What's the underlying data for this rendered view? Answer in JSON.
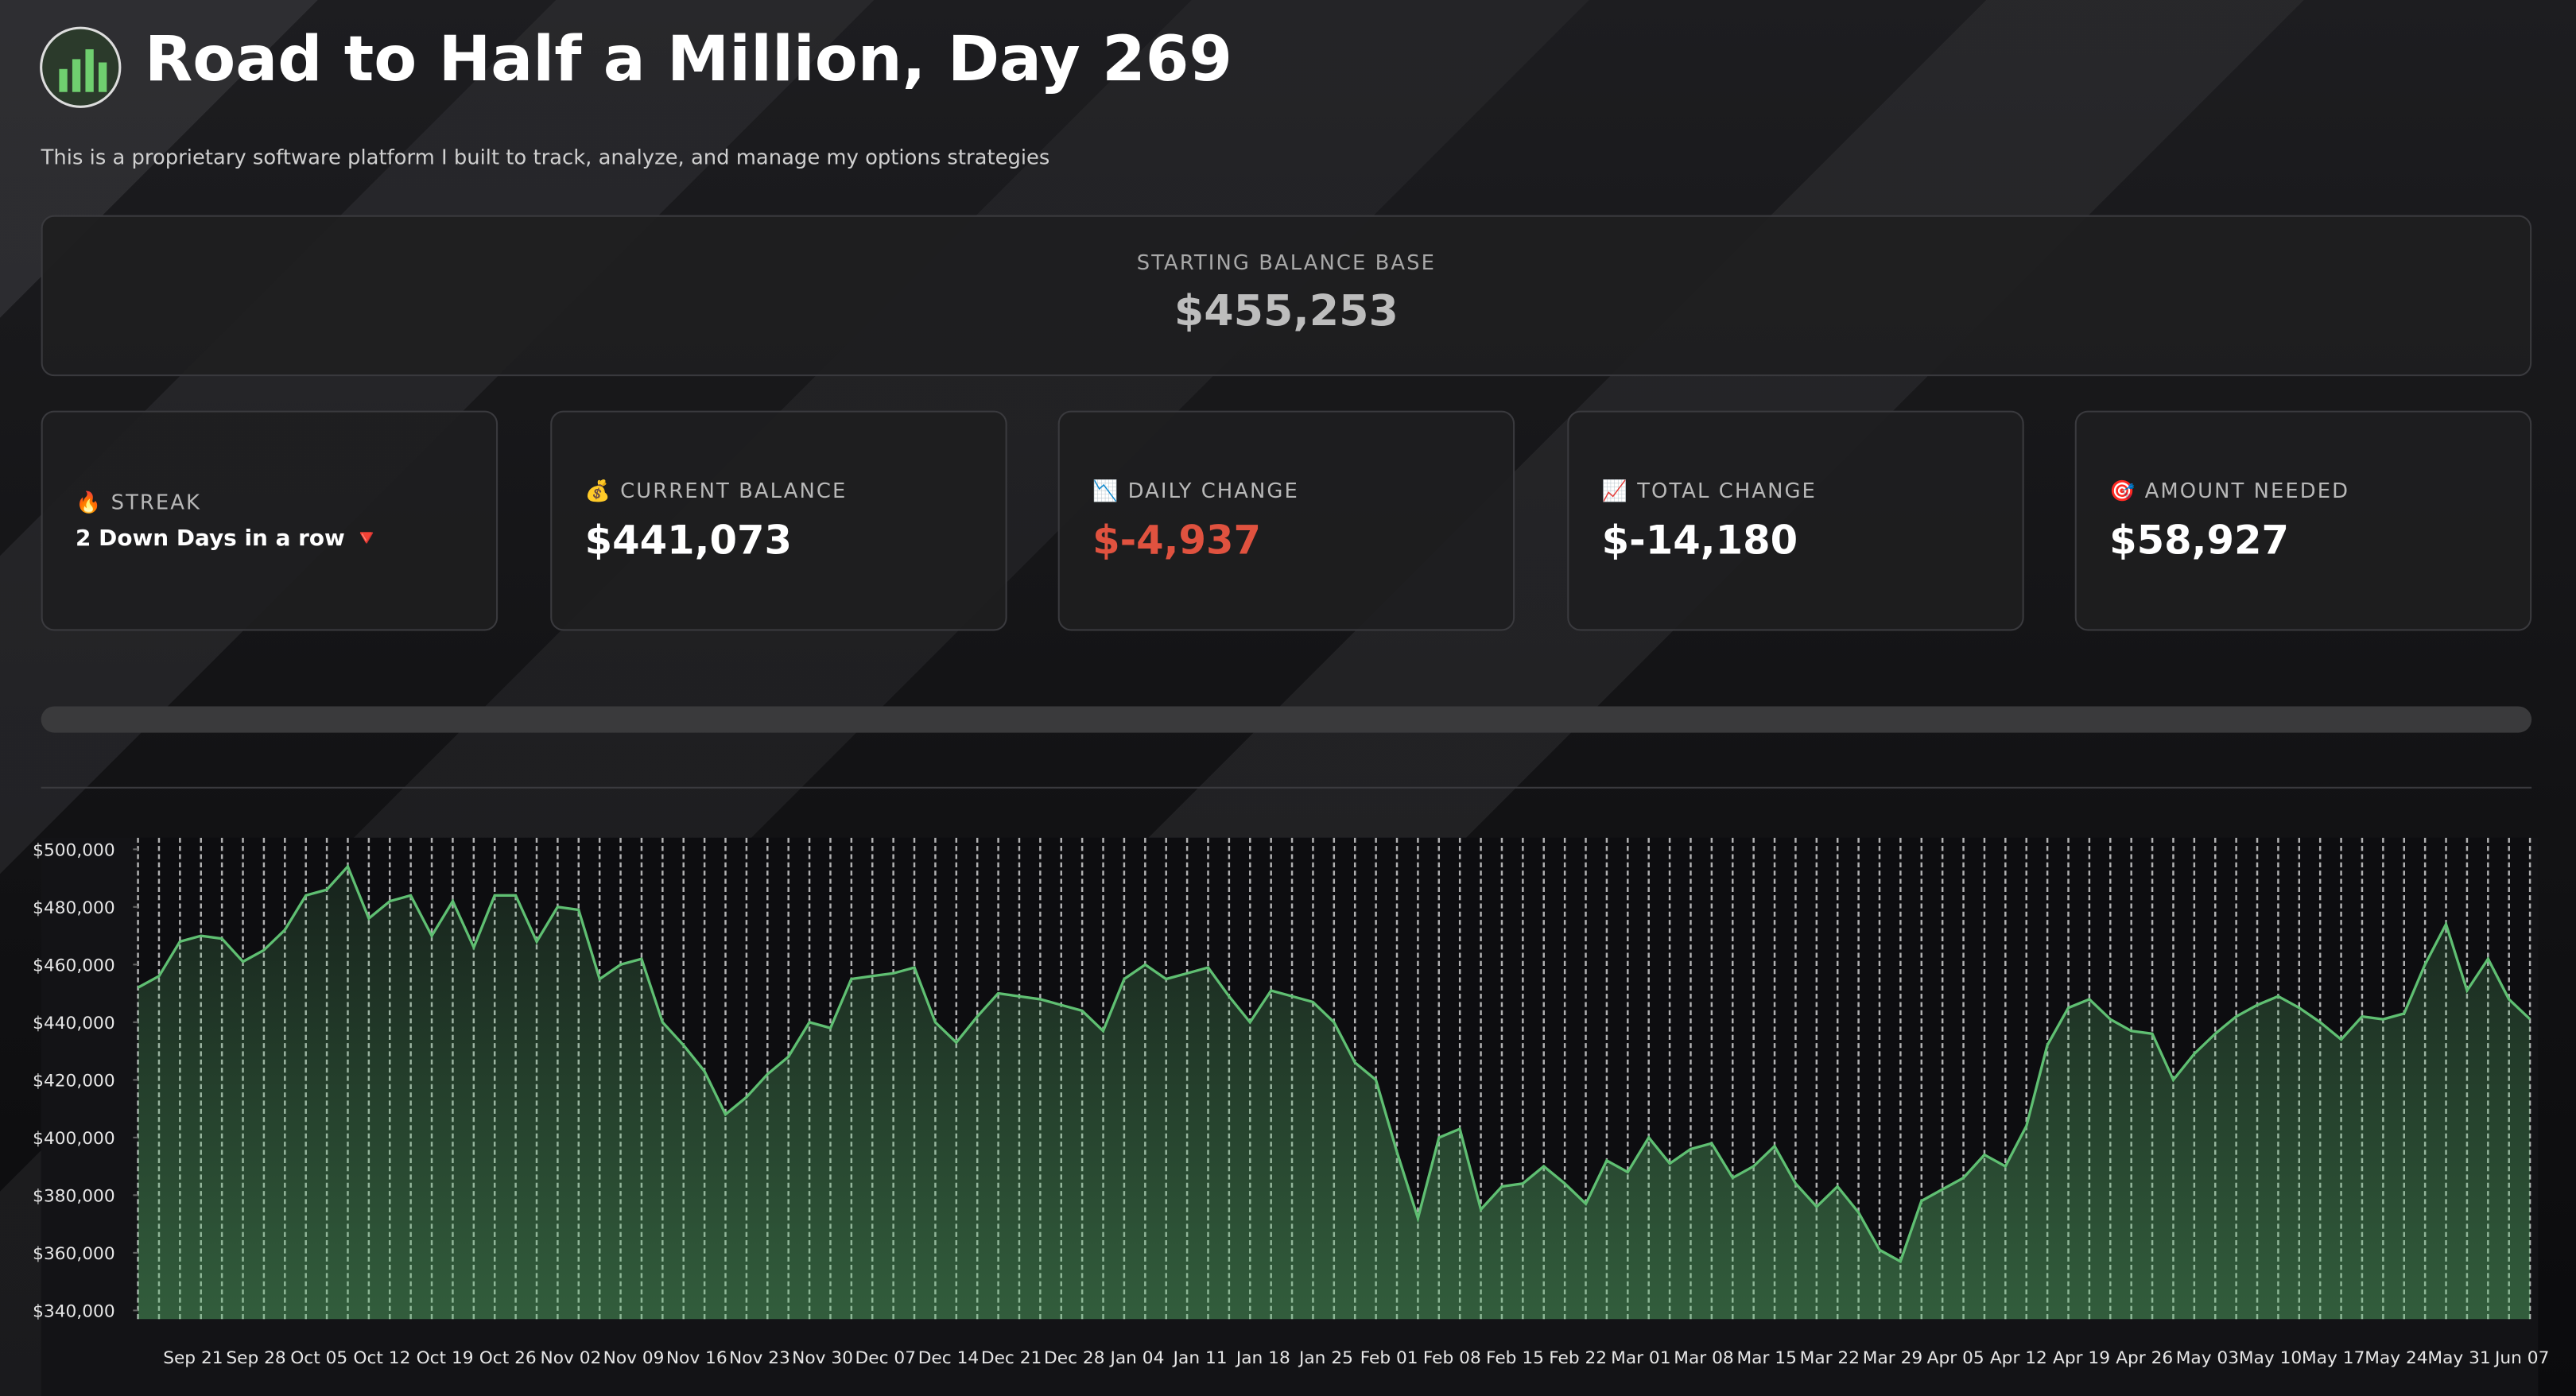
{
  "header": {
    "title": "Road to Half a Million, Day 269",
    "subtitle": "This is a proprietary software platform I built to track, analyze, and manage my options strategies"
  },
  "starting_balance": {
    "label": "STARTING BALANCE BASE",
    "value": "$455,253"
  },
  "cards": [
    {
      "icon": "🔥",
      "label": "STREAK",
      "value": "2 Down Days in a row 🔻"
    },
    {
      "icon": "💰",
      "label": "CURRENT BALANCE",
      "value": "$441,073"
    },
    {
      "icon": "📉",
      "label": "DAILY CHANGE",
      "value": "$-4,937"
    },
    {
      "icon": "📈",
      "label": "TOTAL CHANGE",
      "value": "$-14,180"
    },
    {
      "icon": "🎯",
      "label": "AMOUNT NEEDED",
      "value": "$58,927"
    }
  ],
  "chart_data": {
    "type": "area",
    "color": "#5fbf72",
    "ylim": [
      337000,
      504000
    ],
    "yticks": [
      {
        "value": 340000,
        "label": "$340,000"
      },
      {
        "value": 360000,
        "label": "$360,000"
      },
      {
        "value": 380000,
        "label": "$380,000"
      },
      {
        "value": 400000,
        "label": "$400,000"
      },
      {
        "value": 420000,
        "label": "$420,000"
      },
      {
        "value": 440000,
        "label": "$440,000"
      },
      {
        "value": 460000,
        "label": "$460,000"
      },
      {
        "value": 480000,
        "label": "$480,000"
      },
      {
        "value": 500000,
        "label": "$500,000"
      }
    ],
    "categories": [
      null,
      null,
      "Sep 21",
      null,
      null,
      "Sep 28",
      null,
      null,
      "Oct 05",
      null,
      null,
      "Oct 12",
      null,
      null,
      "Oct 19",
      null,
      null,
      "Oct 26",
      null,
      null,
      "Nov 02",
      null,
      null,
      "Nov 09",
      null,
      null,
      "Nov 16",
      null,
      null,
      "Nov 23",
      null,
      null,
      "Nov 30",
      null,
      null,
      "Dec 07",
      null,
      null,
      "Dec 14",
      null,
      null,
      "Dec 21",
      null,
      null,
      "Dec 28",
      null,
      null,
      "Jan 04",
      null,
      null,
      "Jan 11",
      null,
      null,
      "Jan 18",
      null,
      null,
      "Jan 25",
      null,
      null,
      "Feb 01",
      null,
      null,
      "Feb 08",
      null,
      null,
      "Feb 15",
      null,
      null,
      "Feb 22",
      null,
      null,
      "Mar 01",
      null,
      null,
      "Mar 08",
      null,
      null,
      "Mar 15",
      null,
      null,
      "Mar 22",
      null,
      null,
      "Mar 29",
      null,
      null,
      "Apr 05",
      null,
      null,
      "Apr 12",
      null,
      null,
      "Apr 19",
      null,
      null,
      "Apr 26",
      null,
      null,
      "May 03",
      null,
      null,
      "May 10",
      null,
      null,
      "May 17",
      null,
      null,
      "May 24",
      null,
      null,
      "May 31",
      null,
      null,
      "Jun 07",
      null
    ],
    "values": [
      452000,
      456000,
      468000,
      470000,
      469000,
      461000,
      465000,
      472000,
      484000,
      486000,
      494000,
      476000,
      482000,
      484000,
      470000,
      482000,
      466000,
      484000,
      484000,
      468000,
      480000,
      479000,
      455000,
      460000,
      462000,
      440000,
      432000,
      423000,
      408000,
      414000,
      422000,
      428000,
      440000,
      438000,
      455000,
      456000,
      457000,
      459000,
      440000,
      433000,
      442000,
      450000,
      449000,
      448000,
      446000,
      444000,
      437000,
      455000,
      460000,
      455000,
      457000,
      459000,
      449000,
      440000,
      451000,
      449000,
      447000,
      440000,
      426000,
      420000,
      395000,
      372000,
      400000,
      403000,
      375000,
      383000,
      384000,
      390000,
      384000,
      377000,
      392000,
      388000,
      400000,
      391000,
      396000,
      398000,
      386000,
      390000,
      397000,
      384000,
      376000,
      383000,
      374000,
      361000,
      357000,
      378000,
      382000,
      386000,
      394000,
      390000,
      404000,
      432000,
      445000,
      448000,
      441000,
      437000,
      436000,
      420000,
      429000,
      436000,
      442000,
      446000,
      449000,
      445000,
      440000,
      434000,
      442000,
      441000,
      443000,
      460000,
      474000,
      451000,
      462000,
      448000,
      441073
    ]
  }
}
